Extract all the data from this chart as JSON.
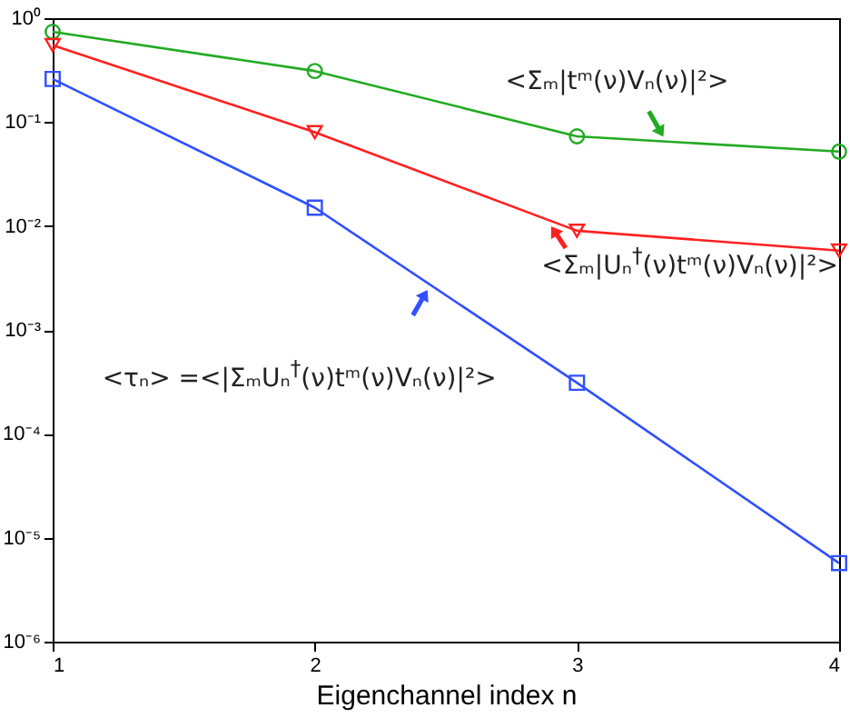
{
  "chart_data": {
    "type": "line",
    "xlabel": "Eigenchannel index n",
    "x": [
      1,
      2,
      3,
      4
    ],
    "series": [
      {
        "color": "#22aa22",
        "marker": "circle",
        "values": [
          0.74,
          0.31,
          0.073,
          0.052
        ]
      },
      {
        "color": "#ff2020",
        "marker": "triangle",
        "values": [
          0.55,
          0.08,
          0.009,
          0.0058
        ]
      },
      {
        "color": "#3050ff",
        "marker": "square",
        "values": [
          0.26,
          0.015,
          0.00031,
          5.7e-06
        ]
      }
    ],
    "annotations": [
      {
        "text": "<Σₘ|tᵐ(ν)Vₙ(ν)|²>",
        "x": 3.34,
        "y": 0.065
      },
      {
        "text": "<Σₘ|Uₙ$^{†}$(ν)tᵐ(ν)Vₙ(ν)|²>",
        "x": 2.89,
        "y": 0.011
      },
      {
        "text": "<τₙ> =<|ΣₘUₙ$^{†}$(ν)tᵐ(ν)Vₙ(ν)|²>",
        "x": 2.44,
        "y": 0.0027
      }
    ],
    "xlim": [
      1,
      4
    ],
    "xticks": [
      1,
      2,
      3,
      4
    ],
    "ylim": [
      1e-06,
      1
    ],
    "yticks": [
      {
        "value": 1,
        "label": "10⁰"
      },
      {
        "value": 0.1,
        "label": "10⁻¹"
      },
      {
        "value": 0.01,
        "label": "10⁻²"
      },
      {
        "value": 0.001,
        "label": "10⁻³"
      },
      {
        "value": 0.0001,
        "label": "10⁻⁴"
      },
      {
        "value": 1e-05,
        "label": "10⁻⁵"
      },
      {
        "value": 1e-06,
        "label": "10⁻⁶"
      }
    ],
    "log": "y"
  }
}
